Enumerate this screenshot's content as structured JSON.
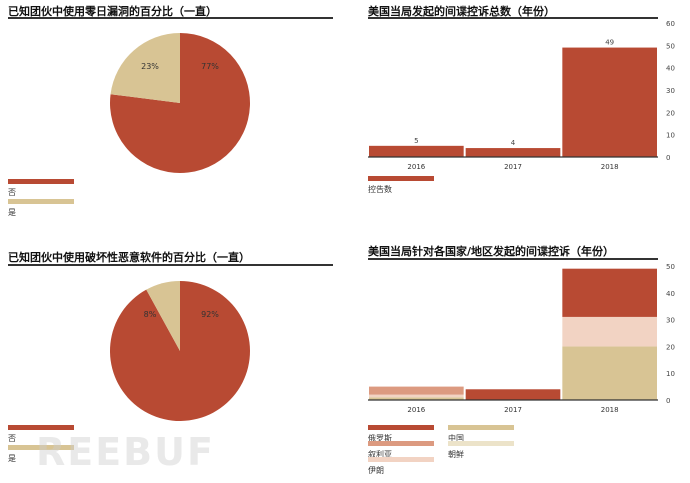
{
  "colors": {
    "red": "#b84a33",
    "tan": "#d8c494",
    "salmon": "#dc9a80",
    "peach": "#f2d3c3",
    "cream": "#ece3c9"
  },
  "chart_data": [
    {
      "type": "pie",
      "title": "已知团伙中使用零日漏洞的百分比（一直）",
      "slices": [
        {
          "name": "否",
          "value": 77,
          "label": "77%",
          "color": "#b84a33"
        },
        {
          "name": "是",
          "value": 23,
          "label": "23%",
          "color": "#d8c494"
        }
      ],
      "legend_position": "bottom-left"
    },
    {
      "type": "bar",
      "title": "美国当局发起的间谍控诉总数（年份）",
      "categories": [
        "2016",
        "2017",
        "2018"
      ],
      "series": [
        {
          "name": "控告数",
          "values": [
            5,
            4,
            49
          ],
          "labels": [
            "5",
            "4",
            "49"
          ],
          "color": "#b84a33"
        }
      ],
      "ylim": [
        0,
        60
      ],
      "yticks": [
        "0",
        "10",
        "20",
        "30",
        "40",
        "50",
        "60"
      ],
      "y_axis_position": "right",
      "legend_position": "bottom-left"
    },
    {
      "type": "pie",
      "title": "已知团伙中使用破坏性恶意软件的百分比（一直）",
      "slices": [
        {
          "name": "否",
          "value": 92,
          "label": "92%",
          "color": "#b84a33"
        },
        {
          "name": "是",
          "value": 8,
          "label": "8%",
          "color": "#d8c494"
        }
      ],
      "legend_position": "bottom-left"
    },
    {
      "type": "bar",
      "stacked": true,
      "title": "美国当局针对各国家/地区发起的间谍控诉（年份）",
      "categories": [
        "2016",
        "2017",
        "2018"
      ],
      "series": [
        {
          "name": "中国",
          "values": [
            1,
            0,
            20
          ],
          "color": "#d8c494"
        },
        {
          "name": "朝鲜",
          "values": [
            0,
            0,
            0
          ],
          "color": "#ece3c9"
        },
        {
          "name": "伊朗",
          "values": [
            1,
            0,
            11
          ],
          "color": "#f2d3c3"
        },
        {
          "name": "叙利亚",
          "values": [
            3,
            0,
            0
          ],
          "color": "#dc9a80"
        },
        {
          "name": "俄罗斯",
          "values": [
            0,
            4,
            18
          ],
          "color": "#b84a33"
        }
      ],
      "legend_order": [
        "俄罗斯",
        "中国",
        "叙利亚",
        "朝鲜",
        "伊朗"
      ],
      "ylim": [
        0,
        50
      ],
      "yticks": [
        "0",
        "10",
        "20",
        "30",
        "40",
        "50"
      ],
      "y_axis_position": "right",
      "legend_position": "bottom-left"
    }
  ],
  "watermark": "REEBUF"
}
